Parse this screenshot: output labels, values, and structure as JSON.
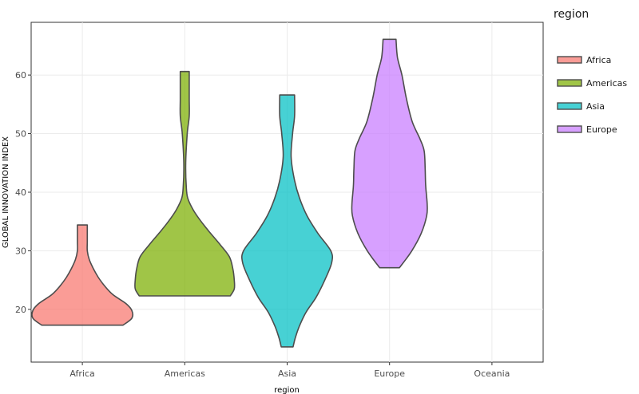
{
  "chart_data": {
    "type": "violin",
    "xlabel": "region",
    "ylabel": "GLOBAL INNOVATION INDEX",
    "categories": [
      "Africa",
      "Americas",
      "Asia",
      "Europe",
      "Oceania"
    ],
    "ylim": [
      11,
      69
    ],
    "yticks": [
      20,
      30,
      40,
      50,
      60
    ],
    "grid": true,
    "legend": {
      "title": "region",
      "position": "right",
      "entries": [
        "Africa",
        "Americas",
        "Asia",
        "Europe"
      ]
    },
    "series": [
      {
        "name": "Africa",
        "color": "#F8766D",
        "min": 17.3,
        "max": 34.4,
        "profile": [
          [
            17.3,
            0.82
          ],
          [
            18.5,
            1.0
          ],
          [
            19.8,
            1.0
          ],
          [
            21.0,
            0.88
          ],
          [
            22.5,
            0.62
          ],
          [
            24.0,
            0.45
          ],
          [
            25.5,
            0.32
          ],
          [
            27.0,
            0.22
          ],
          [
            28.5,
            0.14
          ],
          [
            30.0,
            0.1
          ],
          [
            31.5,
            0.1
          ],
          [
            33.0,
            0.1
          ],
          [
            34.4,
            0.1
          ]
        ]
      },
      {
        "name": "Americas",
        "color": "#7CAE00",
        "min": 22.3,
        "max": 60.6,
        "profile": [
          [
            22.3,
            0.92
          ],
          [
            23.5,
            1.0
          ],
          [
            25.0,
            1.0
          ],
          [
            27.0,
            0.97
          ],
          [
            29.0,
            0.9
          ],
          [
            31.0,
            0.72
          ],
          [
            33.0,
            0.52
          ],
          [
            35.0,
            0.33
          ],
          [
            37.0,
            0.17
          ],
          [
            39.0,
            0.06
          ],
          [
            41.0,
            0.03
          ],
          [
            45.0,
            0.02
          ],
          [
            50.0,
            0.05
          ],
          [
            53.0,
            0.09
          ],
          [
            56.0,
            0.09
          ],
          [
            60.6,
            0.09
          ]
        ]
      },
      {
        "name": "Asia",
        "color": "#00BFC4",
        "min": 13.6,
        "max": 56.6,
        "profile": [
          [
            13.6,
            0.12
          ],
          [
            15.0,
            0.16
          ],
          [
            17.0,
            0.24
          ],
          [
            19.5,
            0.38
          ],
          [
            22.0,
            0.58
          ],
          [
            25.0,
            0.76
          ],
          [
            28.0,
            0.9
          ],
          [
            30.0,
            0.88
          ],
          [
            33.0,
            0.62
          ],
          [
            36.0,
            0.4
          ],
          [
            39.0,
            0.25
          ],
          [
            42.0,
            0.15
          ],
          [
            46.0,
            0.08
          ],
          [
            50.0,
            0.11
          ],
          [
            53.0,
            0.15
          ],
          [
            56.6,
            0.15
          ]
        ]
      },
      {
        "name": "Europe",
        "color": "#C77CFF",
        "min": 27.1,
        "max": 66.1,
        "profile": [
          [
            27.1,
            0.2
          ],
          [
            30.0,
            0.45
          ],
          [
            33.0,
            0.64
          ],
          [
            36.0,
            0.75
          ],
          [
            38.0,
            0.76
          ],
          [
            41.0,
            0.73
          ],
          [
            44.0,
            0.72
          ],
          [
            47.0,
            0.7
          ],
          [
            49.0,
            0.62
          ],
          [
            52.0,
            0.46
          ],
          [
            56.0,
            0.34
          ],
          [
            60.0,
            0.25
          ],
          [
            63.0,
            0.16
          ],
          [
            66.1,
            0.13
          ]
        ]
      }
    ]
  }
}
